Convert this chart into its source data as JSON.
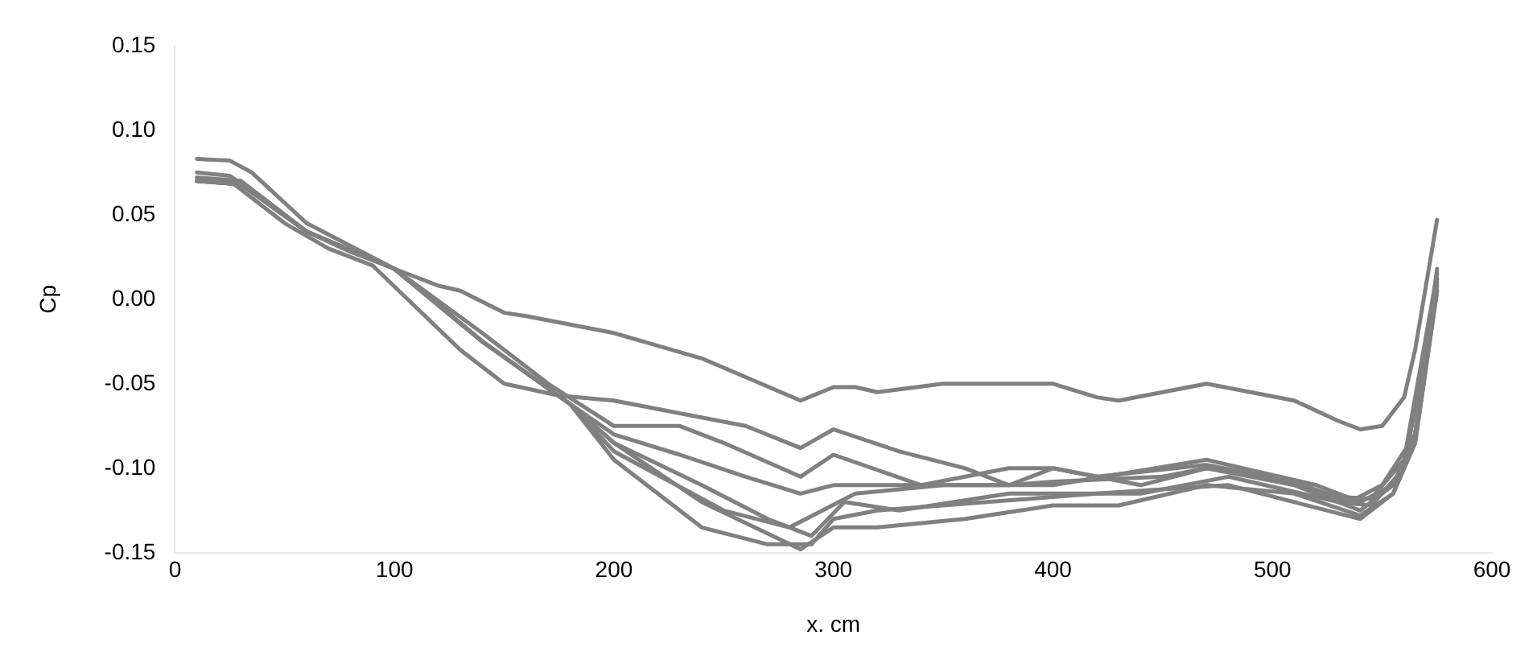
{
  "chart_data": {
    "type": "line",
    "xlabel": "x. cm",
    "ylabel": "Cp",
    "xlim": [
      0,
      600
    ],
    "xticks": [
      0,
      100,
      200,
      300,
      400,
      500,
      600
    ],
    "ylim": [
      -0.15,
      0.15
    ],
    "yticks": [
      {
        "value": -0.15,
        "label": "-0.15"
      },
      {
        "value": -0.1,
        "label": "-0.10"
      },
      {
        "value": -0.05,
        "label": "-0.05"
      },
      {
        "value": 0,
        "label": "0.00"
      },
      {
        "value": 0.05,
        "label": "0.05"
      },
      {
        "value": 0.1,
        "label": "0.10"
      },
      {
        "value": 0.15,
        "label": "0.15"
      }
    ],
    "grid": false,
    "legend": false,
    "marker": "none",
    "line_style": "solid",
    "series": [
      {
        "color": "#808080",
        "x": [
          10,
          25,
          40,
          60,
          80,
          100,
          120,
          130,
          150,
          160,
          200,
          240,
          285,
          300,
          310,
          320,
          350,
          400,
          420,
          430,
          450,
          470,
          490,
          510,
          530,
          540,
          550,
          560,
          565,
          575
        ],
        "values": [
          0.075,
          0.073,
          0.06,
          0.04,
          0.028,
          0.018,
          0.008,
          0.005,
          -0.008,
          -0.01,
          -0.02,
          -0.035,
          -0.06,
          -0.052,
          -0.052,
          -0.055,
          -0.05,
          -0.05,
          -0.058,
          -0.06,
          -0.055,
          -0.05,
          -0.055,
          -0.06,
          -0.072,
          -0.077,
          -0.075,
          -0.058,
          -0.03,
          0.047
        ]
      },
      {
        "color": "#808080",
        "x": [
          10,
          25,
          50,
          70,
          90,
          110,
          130,
          150,
          175,
          200,
          220,
          240,
          260,
          285,
          300,
          330,
          360,
          380,
          400,
          450,
          470,
          500,
          530,
          545,
          560,
          575
        ],
        "values": [
          0.07,
          0.07,
          0.045,
          0.03,
          0.02,
          -0.005,
          -0.03,
          -0.05,
          -0.057,
          -0.06,
          -0.065,
          -0.07,
          -0.075,
          -0.088,
          -0.077,
          -0.09,
          -0.1,
          -0.11,
          -0.108,
          -0.105,
          -0.1,
          -0.105,
          -0.117,
          -0.118,
          -0.095,
          0.015
        ]
      },
      {
        "color": "#808080",
        "x": [
          10,
          25,
          35,
          60,
          100,
          140,
          170,
          200,
          230,
          250,
          285,
          300,
          340,
          380,
          400,
          420,
          470,
          510,
          535,
          550,
          565,
          575
        ],
        "values": [
          0.083,
          0.082,
          0.075,
          0.045,
          0.018,
          -0.02,
          -0.05,
          -0.075,
          -0.075,
          -0.085,
          -0.105,
          -0.092,
          -0.11,
          -0.11,
          -0.1,
          -0.105,
          -0.098,
          -0.108,
          -0.12,
          -0.11,
          -0.08,
          0.018
        ]
      },
      {
        "color": "#808080",
        "x": [
          10,
          30,
          60,
          100,
          140,
          180,
          200,
          230,
          260,
          285,
          300,
          340,
          380,
          400,
          440,
          470,
          510,
          540,
          555,
          565,
          575
        ],
        "values": [
          0.07,
          0.068,
          0.04,
          0.018,
          -0.025,
          -0.062,
          -0.08,
          -0.092,
          -0.105,
          -0.115,
          -0.11,
          -0.11,
          -0.1,
          -0.1,
          -0.11,
          -0.1,
          -0.11,
          -0.125,
          -0.11,
          -0.08,
          0.01
        ]
      },
      {
        "color": "#808080",
        "x": [
          10,
          30,
          60,
          100,
          140,
          180,
          200,
          240,
          285,
          300,
          320,
          360,
          400,
          430,
          470,
          510,
          540,
          555,
          565,
          575
        ],
        "values": [
          0.072,
          0.07,
          0.04,
          0.018,
          -0.025,
          -0.062,
          -0.085,
          -0.12,
          -0.148,
          -0.135,
          -0.135,
          -0.13,
          -0.122,
          -0.122,
          -0.11,
          -0.115,
          -0.128,
          -0.115,
          -0.085,
          0.005
        ]
      },
      {
        "color": "#808080",
        "x": [
          10,
          30,
          60,
          100,
          140,
          180,
          200,
          240,
          270,
          290,
          305,
          330,
          380,
          440,
          480,
          530,
          545,
          560,
          575
        ],
        "values": [
          0.07,
          0.068,
          0.04,
          0.018,
          -0.025,
          -0.062,
          -0.085,
          -0.11,
          -0.13,
          -0.14,
          -0.12,
          -0.125,
          -0.115,
          -0.115,
          -0.105,
          -0.12,
          -0.122,
          -0.1,
          0.008
        ]
      },
      {
        "color": "#808080",
        "x": [
          10,
          30,
          60,
          100,
          140,
          180,
          200,
          250,
          280,
          295,
          310,
          350,
          400,
          470,
          520,
          540,
          555,
          565,
          575
        ],
        "values": [
          0.07,
          0.068,
          0.04,
          0.018,
          -0.025,
          -0.062,
          -0.09,
          -0.125,
          -0.135,
          -0.125,
          -0.115,
          -0.11,
          -0.11,
          -0.095,
          -0.11,
          -0.12,
          -0.11,
          -0.08,
          0.012
        ]
      },
      {
        "color": "#808080",
        "x": [
          10,
          30,
          60,
          100,
          140,
          180,
          200,
          240,
          270,
          290,
          300,
          320,
          370,
          420,
          480,
          540,
          555,
          565,
          575
        ],
        "values": [
          0.07,
          0.068,
          0.04,
          0.018,
          -0.025,
          -0.062,
          -0.095,
          -0.135,
          -0.145,
          -0.145,
          -0.13,
          -0.125,
          -0.12,
          -0.115,
          -0.11,
          -0.13,
          -0.115,
          -0.085,
          0.005
        ]
      }
    ]
  }
}
